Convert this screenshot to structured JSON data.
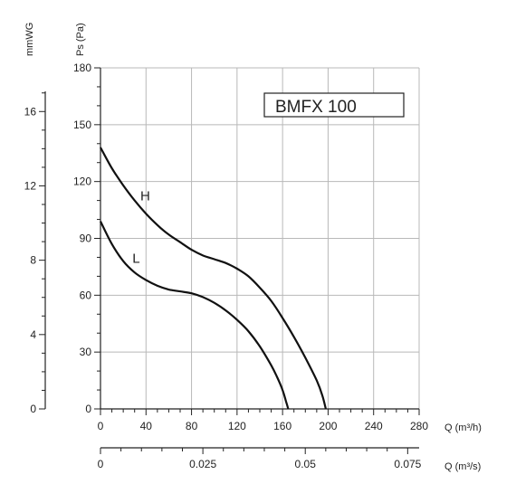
{
  "chart_data": {
    "type": "line",
    "title": "BMFX 100",
    "left_axis": {
      "label": "Ps (Pa)",
      "ticks": [
        0,
        30,
        60,
        90,
        120,
        150,
        180
      ],
      "range": [
        0,
        180
      ]
    },
    "secondary_left_axis": {
      "label": "mmWG",
      "ticks": [
        0,
        4,
        8,
        12,
        16
      ],
      "range": [
        0,
        18.35
      ]
    },
    "x_axis": {
      "label": "Q (m³/h)",
      "ticks": [
        0,
        40,
        80,
        120,
        160,
        200,
        240,
        280
      ],
      "range": [
        0,
        280
      ]
    },
    "secondary_x_axis": {
      "label": "Q (m³/s)",
      "ticks": [
        {
          "value": 0,
          "label": "0"
        },
        {
          "value": 0.025,
          "label": "0.025"
        },
        {
          "value": 0.05,
          "label": "0.05"
        },
        {
          "value": 0.075,
          "label": "0.075"
        }
      ],
      "range": [
        0,
        0.0778
      ]
    },
    "grid": true,
    "series": [
      {
        "name": "H",
        "x": [
          0,
          10,
          20,
          30,
          40,
          50,
          60,
          70,
          80,
          90,
          100,
          110,
          120,
          130,
          140,
          150,
          160,
          170,
          180,
          190,
          195,
          198
        ],
        "y": [
          138,
          127,
          118,
          110,
          103,
          97,
          92,
          88,
          84,
          81,
          79,
          77,
          74,
          70,
          64,
          57,
          48,
          38,
          27,
          15,
          7,
          0
        ]
      },
      {
        "name": "L",
        "x": [
          0,
          10,
          20,
          30,
          40,
          50,
          60,
          70,
          80,
          90,
          100,
          110,
          120,
          130,
          140,
          150,
          155,
          160,
          163,
          165
        ],
        "y": [
          99,
          87,
          78,
          72,
          68,
          65,
          63,
          62,
          61,
          59,
          56,
          52,
          47,
          41,
          33,
          23,
          17,
          10,
          4,
          0
        ]
      }
    ]
  }
}
